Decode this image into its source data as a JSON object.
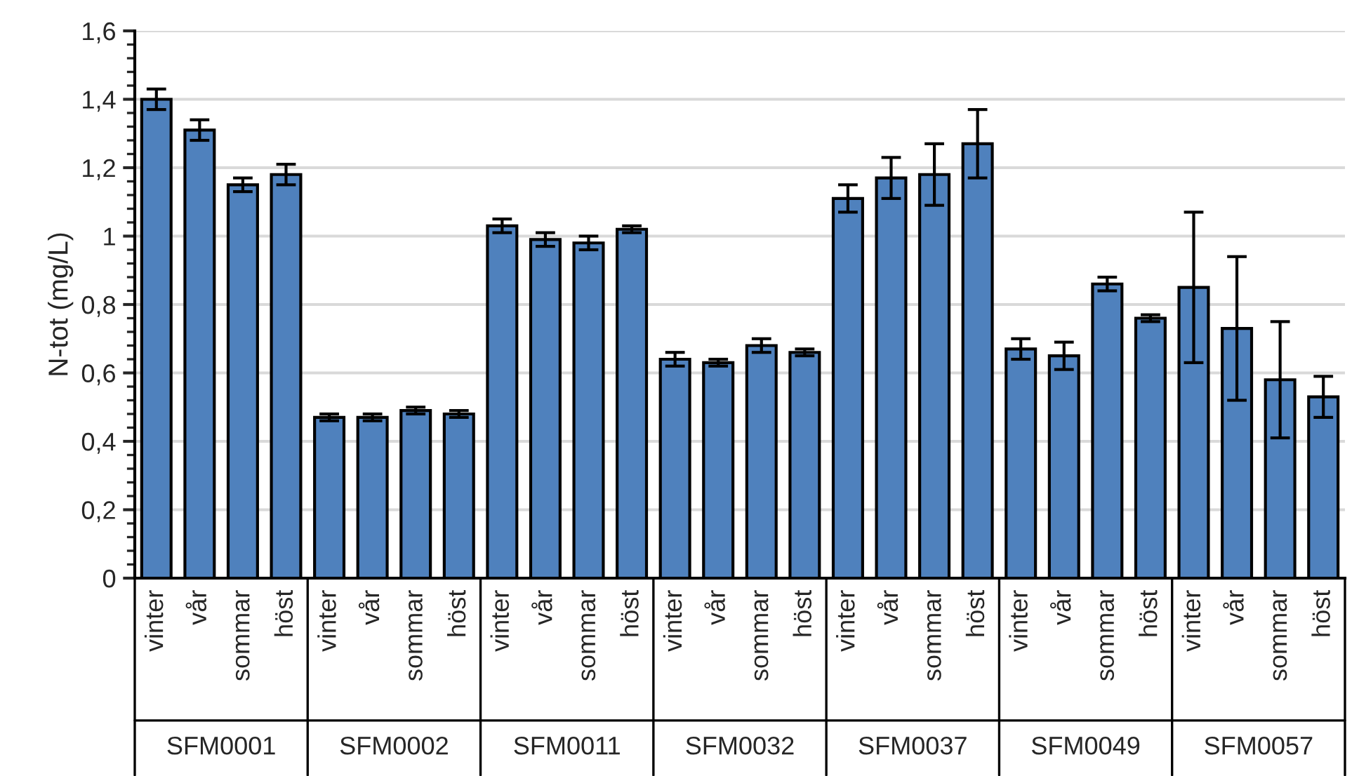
{
  "chart_data": {
    "type": "bar",
    "ylabel": "N-tot (mg/L)",
    "categories": [
      "vinter",
      "vår",
      "sommar",
      "höst",
      "vinter",
      "vår",
      "sommar",
      "höst",
      "vinter",
      "vår",
      "sommar",
      "höst",
      "vinter",
      "vår",
      "sommar",
      "höst",
      "vinter",
      "vår",
      "sommar",
      "höst",
      "vinter",
      "vår",
      "sommar",
      "höst",
      "vinter",
      "vår",
      "sommar",
      "höst"
    ],
    "series": [
      {
        "color": "#4f81bd",
        "values": [
          1.4,
          1.31,
          1.15,
          1.18,
          0.47,
          0.47,
          0.49,
          0.48,
          1.03,
          0.99,
          0.98,
          1.02,
          0.64,
          0.63,
          0.68,
          0.66,
          1.11,
          1.17,
          1.18,
          1.27,
          0.67,
          0.65,
          0.86,
          0.76,
          0.85,
          0.73,
          0.58,
          0.53
        ],
        "errors": [
          0.03,
          0.03,
          0.02,
          0.03,
          0.01,
          0.01,
          0.01,
          0.01,
          0.02,
          0.02,
          0.02,
          0.01,
          0.02,
          0.01,
          0.02,
          0.01,
          0.04,
          0.06,
          0.09,
          0.1,
          0.03,
          0.04,
          0.02,
          0.01,
          0.22,
          0.21,
          0.17,
          0.06
        ]
      }
    ],
    "ylim": [
      0,
      1.6
    ],
    "yticks": [
      0,
      {
        "value": 0.2,
        "label": "0,2"
      },
      {
        "value": 0.4,
        "label": "0,4"
      },
      {
        "value": 0.6,
        "label": "0,6"
      },
      {
        "value": 0.8,
        "label": "0,8"
      },
      1,
      {
        "value": 1.2,
        "label": "1,2"
      },
      {
        "value": 1.4,
        "label": "1,4"
      },
      {
        "value": 1.6,
        "label": "1,6"
      }
    ],
    "grid": "y",
    "annotations": [
      "SFM0001",
      "SFM0002",
      "SFM0011",
      "SFM0032",
      "SFM0037",
      "SFM0049",
      "SFM0057"
    ]
  }
}
